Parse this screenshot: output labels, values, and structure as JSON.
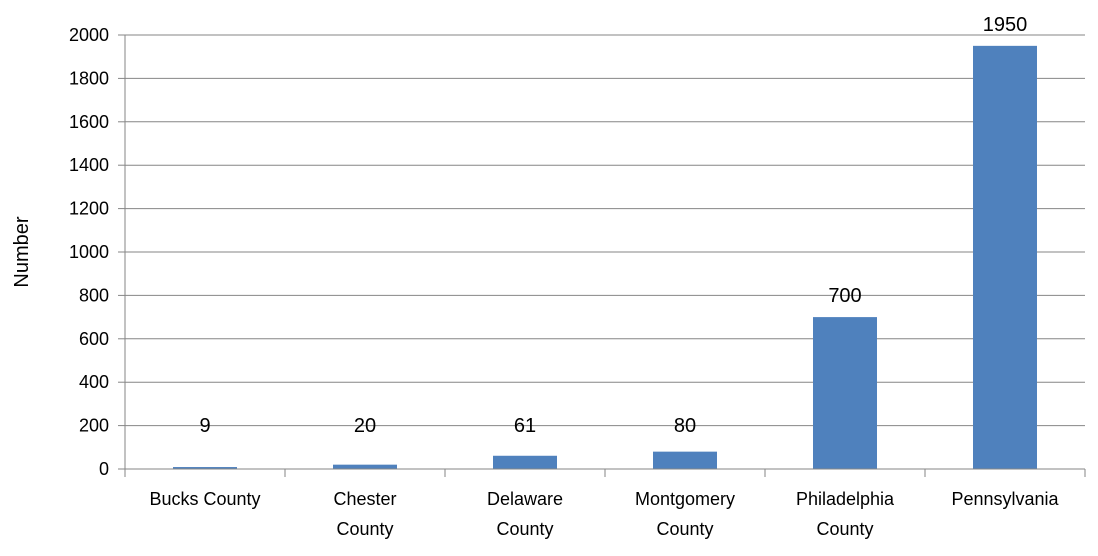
{
  "chart_data": {
    "type": "bar",
    "categories": [
      "Bucks County",
      "Chester County",
      "Delaware County",
      "Montgomery County",
      "Philadelphia County",
      "Pennsylvania"
    ],
    "category_lines": [
      [
        "Bucks County"
      ],
      [
        "Chester",
        "County"
      ],
      [
        "Delaware",
        "County"
      ],
      [
        "Montgomery",
        "County"
      ],
      [
        "Philadelphia",
        "County"
      ],
      [
        "Pennsylvania"
      ]
    ],
    "values": [
      9,
      20,
      61,
      80,
      700,
      1950
    ],
    "data_labels": [
      "9",
      "20",
      "61",
      "80",
      "700",
      "1950"
    ],
    "title": "",
    "xlabel": "",
    "ylabel": "Number",
    "ylim": [
      0,
      2000
    ],
    "yticks": [
      0,
      200,
      400,
      600,
      800,
      1000,
      1200,
      1400,
      1600,
      1800,
      2000
    ],
    "grid": true,
    "legend": "none",
    "colors": {
      "bar": "#4F81BD",
      "grid": "#868686",
      "axis": "#868686"
    }
  }
}
